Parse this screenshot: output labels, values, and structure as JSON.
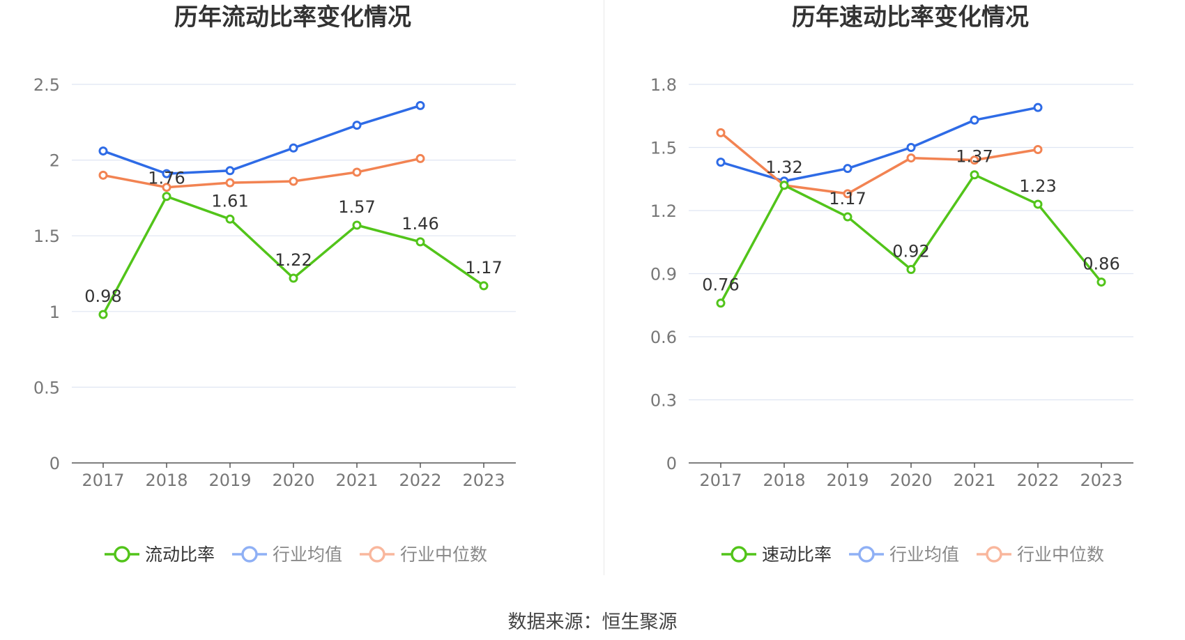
{
  "source": "数据来源：恒生聚源",
  "chart_data": [
    {
      "type": "line",
      "title": "历年流动比率变化情况",
      "categories": [
        "2017",
        "2018",
        "2019",
        "2020",
        "2021",
        "2022",
        "2023"
      ],
      "ylim": [
        0,
        2.5
      ],
      "yticks": [
        "0",
        "0.5",
        "1",
        "1.5",
        "2",
        "2.5"
      ],
      "grid": true,
      "legend_position": "bottom",
      "series": [
        {
          "name": "流动比率",
          "color": "#52c41a",
          "values": [
            0.98,
            1.76,
            1.61,
            1.22,
            1.57,
            1.46,
            1.17
          ],
          "labels": [
            "0.98",
            "1.76",
            "1.61",
            "1.22",
            "1.57",
            "1.46",
            "1.17"
          ]
        },
        {
          "name": "行业均值",
          "color": "#2e6be6",
          "values": [
            2.06,
            1.91,
            1.93,
            2.08,
            2.23,
            2.36,
            null
          ]
        },
        {
          "name": "行业中位数",
          "color": "#f28352",
          "values": [
            1.9,
            1.82,
            1.85,
            1.86,
            1.92,
            2.01,
            null
          ]
        }
      ]
    },
    {
      "type": "line",
      "title": "历年速动比率变化情况",
      "categories": [
        "2017",
        "2018",
        "2019",
        "2020",
        "2021",
        "2022",
        "2023"
      ],
      "ylim": [
        0,
        1.8
      ],
      "yticks": [
        "0",
        "0.3",
        "0.6",
        "0.9",
        "1.2",
        "1.5",
        "1.8"
      ],
      "grid": true,
      "legend_position": "bottom",
      "series": [
        {
          "name": "速动比率",
          "color": "#52c41a",
          "values": [
            0.76,
            1.32,
            1.17,
            0.92,
            1.37,
            1.23,
            0.86
          ],
          "labels": [
            "0.76",
            "1.32",
            "1.17",
            "0.92",
            "1.37",
            "1.23",
            "0.86"
          ]
        },
        {
          "name": "行业均值",
          "color": "#2e6be6",
          "values": [
            1.43,
            1.34,
            1.4,
            1.5,
            1.63,
            1.69,
            null
          ]
        },
        {
          "name": "行业中位数",
          "color": "#f28352",
          "values": [
            1.57,
            1.32,
            1.28,
            1.45,
            1.44,
            1.49,
            null
          ]
        }
      ]
    }
  ]
}
